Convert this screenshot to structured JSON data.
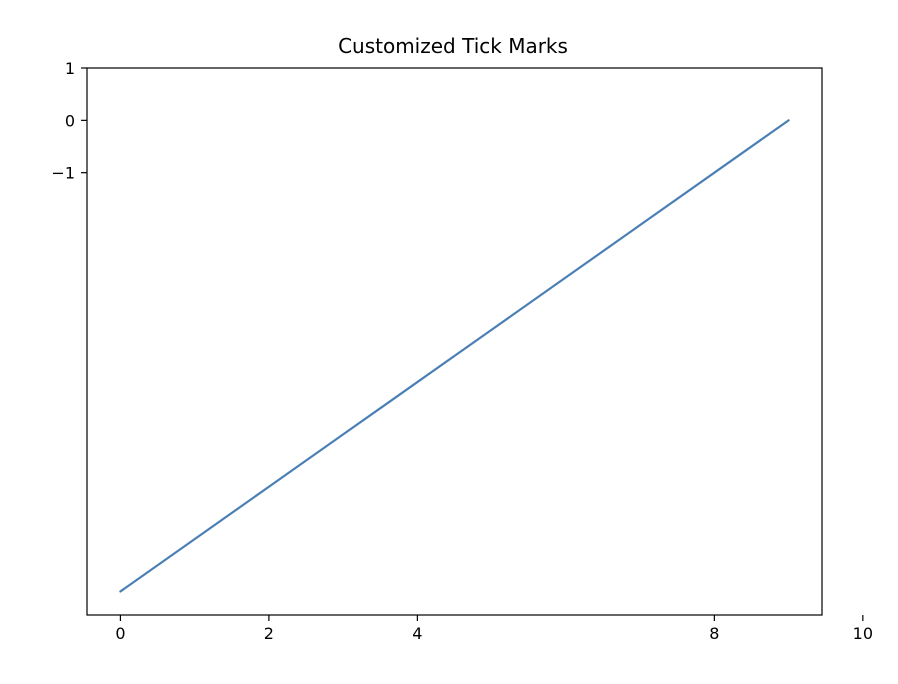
{
  "chart_data": {
    "type": "line",
    "title": "Customized Tick Marks",
    "xlabel": "",
    "ylabel": "",
    "xlim": [
      -0.45,
      9.45
    ],
    "ylim": [
      -9.45,
      1.0
    ],
    "x_ticks": [
      {
        "value": 0,
        "label": "0"
      },
      {
        "value": 2,
        "label": "2"
      },
      {
        "value": 4,
        "label": "4"
      },
      {
        "value": 8,
        "label": "8"
      },
      {
        "value": 10,
        "label": "10"
      }
    ],
    "y_ticks": [
      {
        "value": 1,
        "label": "1"
      },
      {
        "value": 0,
        "label": "0"
      },
      {
        "value": -1,
        "label": "−1"
      }
    ],
    "grid": false,
    "series": [
      {
        "color": "#4a7fb6",
        "x": [
          0,
          1,
          2,
          3,
          4,
          5,
          6,
          7,
          8,
          9
        ],
        "y": [
          -9,
          -8,
          -7,
          -6,
          -5,
          -4,
          -3,
          -2,
          -1,
          0
        ]
      }
    ]
  }
}
